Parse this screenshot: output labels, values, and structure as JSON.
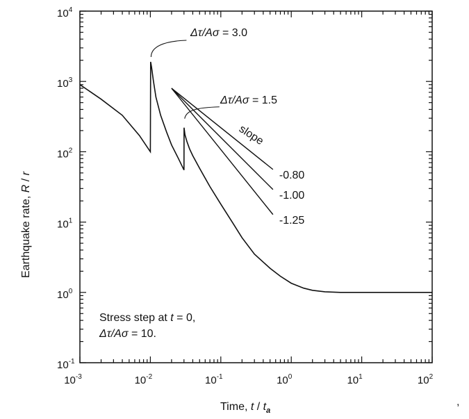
{
  "chart_data": {
    "type": "line",
    "xscale": "log",
    "yscale": "log",
    "xlim": [
      0.001,
      100
    ],
    "ylim": [
      0.1,
      10000
    ],
    "x_ticks": [
      {
        "base": "10",
        "exp": "-3",
        "value": 0.001
      },
      {
        "base": "10",
        "exp": "-2",
        "value": 0.01
      },
      {
        "base": "10",
        "exp": "-1",
        "value": 0.1
      },
      {
        "base": "10",
        "exp": "0",
        "value": 1
      },
      {
        "base": "10",
        "exp": "1",
        "value": 10
      },
      {
        "base": "10",
        "exp": "2",
        "value": 100
      }
    ],
    "y_ticks": [
      {
        "base": "10",
        "exp": "-1",
        "value": 0.1
      },
      {
        "base": "10",
        "exp": "0",
        "value": 1
      },
      {
        "base": "10",
        "exp": "1",
        "value": 10
      },
      {
        "base": "10",
        "exp": "2",
        "value": 100
      },
      {
        "base": "10",
        "exp": "3",
        "value": 1000
      },
      {
        "base": "10",
        "exp": "4",
        "value": 10000
      }
    ],
    "xlabel": {
      "text": "Time,",
      "var": "t",
      "sep": " / ",
      "sub_base": "t",
      "sub": "a"
    },
    "ylabel": {
      "text": "Earthquake rate,",
      "var": "R",
      "sep": " / ",
      "var2": "r"
    },
    "grid": false,
    "series": [
      {
        "x": [
          0.001,
          0.002,
          0.004,
          0.007,
          0.01,
          0.0101,
          0.0104,
          0.011,
          0.012,
          0.014,
          0.017,
          0.02,
          0.025,
          0.03,
          0.0301,
          0.031,
          0.033,
          0.036,
          0.04,
          0.05,
          0.07,
          0.1,
          0.15,
          0.2,
          0.3,
          0.5,
          0.7,
          1,
          1.5,
          2,
          3,
          5,
          7,
          10,
          100
        ],
        "y": [
          900,
          560,
          330,
          170,
          100,
          1900,
          1600,
          1050,
          600,
          330,
          190,
          125,
          80,
          55,
          220,
          175,
          140,
          110,
          88,
          58,
          32,
          18,
          9.5,
          6,
          3.5,
          2.2,
          1.7,
          1.35,
          1.15,
          1.07,
          1.02,
          1.0,
          1.0,
          1.0,
          1.0
        ]
      }
    ],
    "slope_lines": [
      {
        "label": "-0.80",
        "slope": -0.8,
        "x": [
          0.02,
          0.55
        ],
        "y": [
          800,
          56
        ]
      },
      {
        "label": "-1.00",
        "slope": -1.0,
        "x": [
          0.02,
          0.55
        ],
        "y": [
          800,
          29
        ]
      },
      {
        "label": "-1.25",
        "slope": -1.25,
        "x": [
          0.02,
          0.55
        ],
        "y": [
          800,
          12.8
        ]
      }
    ],
    "annotations": {
      "peak1": {
        "parts": [
          "Δτ/",
          "Aσ",
          " = 3.0"
        ],
        "x": 0.01,
        "y": 1900
      },
      "peak2": {
        "parts": [
          "Δτ/",
          "Aσ",
          " = 1.5"
        ],
        "x": 0.03,
        "y": 220
      },
      "slope_word": "slope",
      "stress_line1": {
        "parts": [
          "Stress step at ",
          "t",
          " = 0,"
        ]
      },
      "stress_line2": {
        "parts": [
          "Δτ/",
          "Aσ",
          " = 10."
        ]
      }
    },
    "stray_mark": ","
  }
}
